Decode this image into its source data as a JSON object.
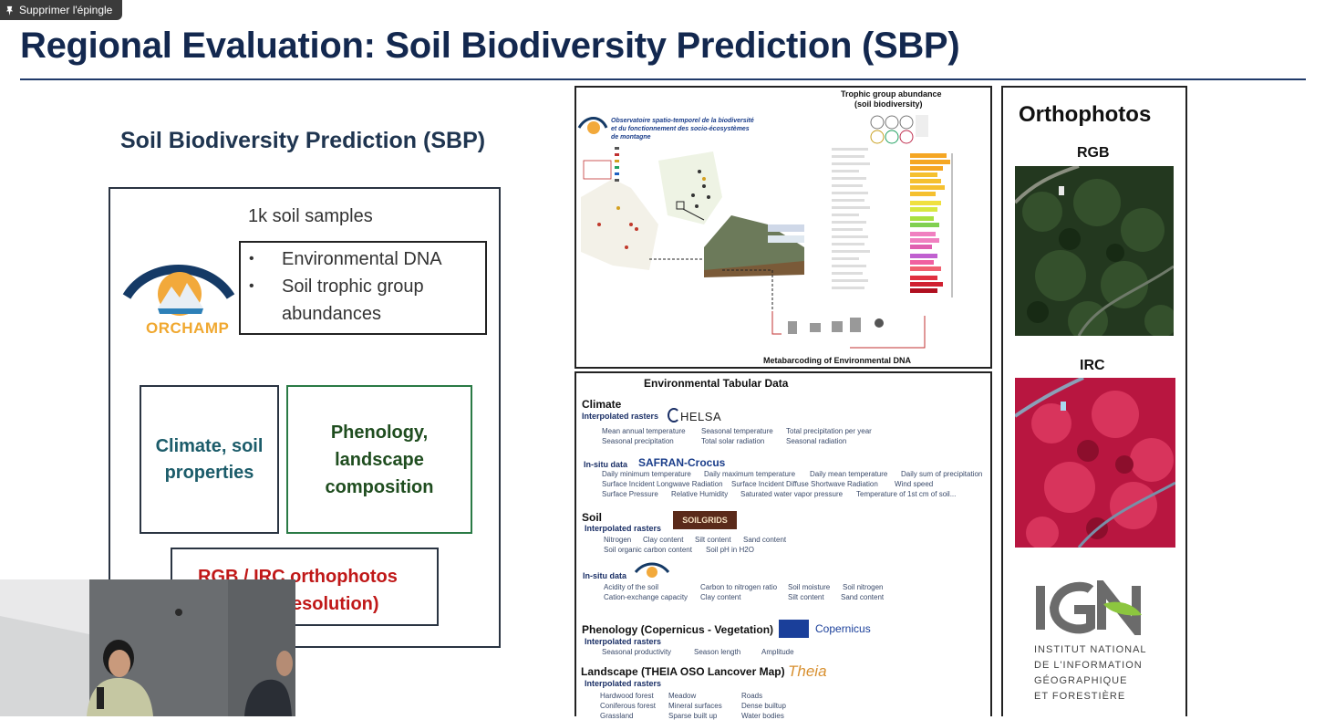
{
  "overlay": {
    "unpin_label": "Supprimer l'épingle"
  },
  "slide": {
    "title": "Regional Evaluation: Soil Biodiversity Prediction (SBP)",
    "left": {
      "heading": "Soil Biodiversity Prediction (SBP)",
      "samples": "1k soil samples",
      "orchamp_text": "ORCHAMP",
      "bullets": [
        "Environmental DNA",
        "Soil trophic group",
        "abundances"
      ],
      "climate_box": [
        "Climate, soil",
        "properties"
      ],
      "phenology_box": [
        "Phenology,",
        "landscape",
        "composition"
      ],
      "orthophotos_box": [
        "RGB / IRC orthophotos",
        "esolution)"
      ]
    },
    "trophic_panel": {
      "title_line1": "Trophic group abundance",
      "title_line2": "(soil biodiversity)",
      "observatory_line1": "Observatoire spatio-temporel de la biodiversité",
      "observatory_line2": "et du fonctionnement des socio-écosystèmes",
      "observatory_line3": "de montagne",
      "caption": "Metabarcoding of Environmental DNA"
    },
    "env_panel": {
      "title": "Environmental Tabular Data",
      "climate": {
        "label": "Climate",
        "interp": "Interpolated rasters",
        "helsa": "HELSA",
        "row1": [
          "Mean annual temperature",
          "Seasonal temperature",
          "Total precipitation per year"
        ],
        "row2": [
          "Seasonal precipitation",
          "Total solar radiation",
          "Seasonal radiation"
        ],
        "insitu": "In-situ data",
        "safran": "SAFRAN-Crocus",
        "row3": [
          "Daily minimum temperature",
          "Daily maximum temperature",
          "Daily mean temperature",
          "Daily sum of precipitation"
        ],
        "row4": [
          "Surface Incident Longwave Radiation",
          "Surface Incident Diffuse Shortwave Radiation",
          "Wind speed"
        ],
        "row5": [
          "Surface Pressure",
          "Relative Humidity",
          "Saturated water vapor pressure",
          "Temperature of 1st cm of soil..."
        ]
      },
      "soil": {
        "label": "Soil",
        "interp": "Interpolated rasters",
        "soilgrids": "SOILGRIDS",
        "row1": [
          "Nitrogen",
          "Clay content",
          "Silt content",
          "Sand content"
        ],
        "row2": [
          "Soil organic carbon content",
          "Soil pH in H2O"
        ],
        "insitu": "In-situ data",
        "row3": [
          "Acidity of the soil",
          "Carbon to nitrogen ratio",
          "Soil moisture",
          "Soil nitrogen"
        ],
        "row4": [
          "Cation-exchange capacity",
          "Clay content",
          "Silt content",
          "Sand content"
        ]
      },
      "phenology": {
        "label": "Phenology (Copernicus - Vegetation)",
        "interp": "Interpolated rasters",
        "copernicus": "Copernicus",
        "row1": [
          "Seasonal productivity",
          "Season length",
          "Amplitude"
        ]
      },
      "landscape": {
        "label": "Landscape (THEIA OSO Lancover Map)",
        "interp": "Interpolated rasters",
        "theia": "Theia",
        "row1": [
          "Hardwood forest",
          "Meadow",
          "Roads"
        ],
        "row2": [
          "Coniferous forest",
          "Mineral surfaces",
          "Dense builtup"
        ],
        "row3": [
          "Grassland",
          "Sparse built up",
          "Water bodies"
        ]
      }
    },
    "ortho_panel": {
      "title": "Orthophotos",
      "rgb": "RGB",
      "irc": "IRC",
      "ign": "IGN",
      "ign_lines": [
        "INSTITUT NATIONAL",
        "DE L'INFORMATION",
        "GÉOGRAPHIQUE",
        "ET FORESTIÈRE"
      ]
    }
  }
}
